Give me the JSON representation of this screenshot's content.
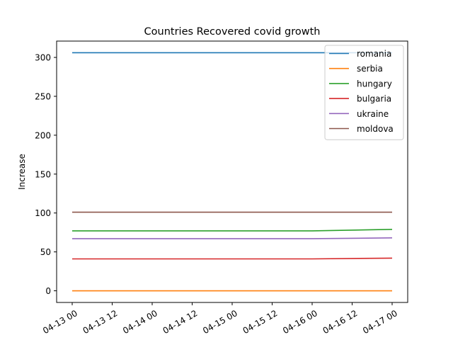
{
  "chart_data": {
    "type": "line",
    "title": "Countries Recovered covid growth",
    "xlabel": "",
    "ylabel": "Increase",
    "x": [
      "2020-04-13 00:00",
      "2020-04-14 00:00",
      "2020-04-15 00:00",
      "2020-04-16 00:00",
      "2020-04-17 00:00"
    ],
    "x_tick_labels": [
      "04-13 00",
      "04-13 12",
      "04-14 00",
      "04-14 12",
      "04-15 00",
      "04-15 12",
      "04-16 00",
      "04-16 12",
      "04-17 00"
    ],
    "y_ticks": [
      0,
      50,
      100,
      150,
      200,
      250,
      300
    ],
    "ylim": [
      -15,
      321
    ],
    "grid": false,
    "legend_position": "top-right",
    "series": [
      {
        "name": "romania",
        "color": "#1f77b4",
        "values": [
          306,
          306,
          306,
          306,
          306
        ]
      },
      {
        "name": "serbia",
        "color": "#ff7f0e",
        "values": [
          0,
          0,
          0,
          0,
          0
        ]
      },
      {
        "name": "hungary",
        "color": "#2ca02c",
        "values": [
          77,
          77,
          77,
          77,
          79
        ]
      },
      {
        "name": "bulgaria",
        "color": "#d62728",
        "values": [
          41,
          41,
          41,
          41,
          42
        ]
      },
      {
        "name": "ukraine",
        "color": "#9467bd",
        "values": [
          67,
          67,
          67,
          67,
          68
        ]
      },
      {
        "name": "moldova",
        "color": "#8c564b",
        "values": [
          101,
          101,
          101,
          101,
          101
        ]
      }
    ]
  }
}
